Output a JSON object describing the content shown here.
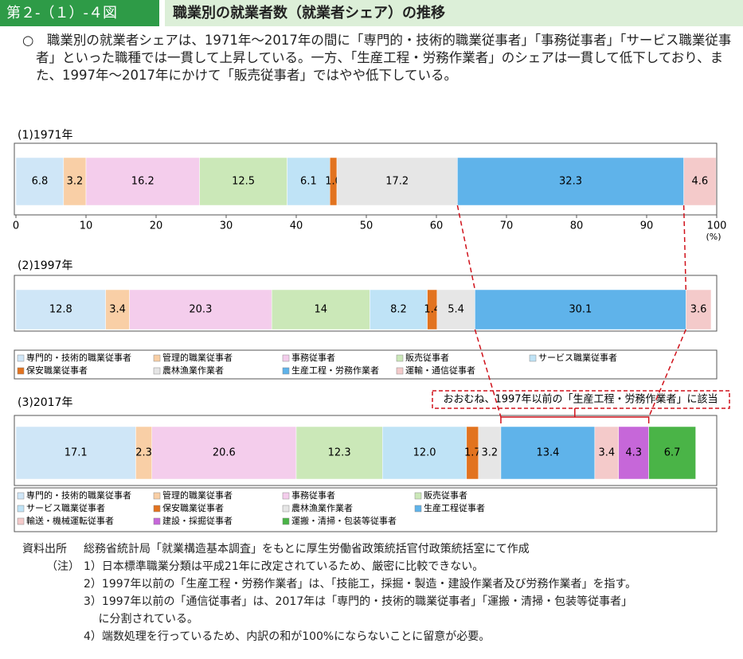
{
  "header": {
    "figure_number": "第２-（１）-４図",
    "title": "職業別の就業者数（就業者シェア）の推移"
  },
  "summary": "○　職業別の就業者シェアは、1971年～2017年の間に「専門的・技術的職業従事者」「事務従事者」「サービス職業従事者」といった職種では一貫して上昇している。一方、「生産工程・労務作業者」のシェアは一貫して低下しており、また、1997年～2017年にかけて「販売従事者」ではやや低下している。",
  "chart_data": [
    {
      "type": "bar",
      "orientation": "horizontal",
      "stacked": true,
      "title": "(1)1971年",
      "xlim": [
        0,
        100
      ],
      "xticks": [
        0,
        10,
        20,
        30,
        40,
        50,
        60,
        70,
        80,
        90,
        100
      ],
      "xlabel": "(%)",
      "series": [
        {
          "color": "#cfe6f7",
          "values": [
            6.8
          ]
        },
        {
          "color": "#f9cfa6",
          "values": [
            3.2
          ]
        },
        {
          "color": "#f4cdec",
          "values": [
            16.2
          ]
        },
        {
          "color": "#cbe8b8",
          "values": [
            12.5
          ]
        },
        {
          "color": "#bfe3f6",
          "values": [
            6.1
          ]
        },
        {
          "color": "#e2731f",
          "values": [
            1
          ],
          "value_labels": [
            "1.0"
          ]
        },
        {
          "color": "#e6e6e6",
          "values": [
            17.2
          ]
        },
        {
          "color": "#5fb3ea",
          "values": [
            32.3
          ]
        },
        {
          "color": "#f4caca",
          "values": [
            4.6
          ]
        }
      ]
    },
    {
      "type": "bar",
      "orientation": "horizontal",
      "stacked": true,
      "title": "(2)1997年",
      "xlim": [
        0,
        100
      ],
      "series": [
        {
          "name": "専門的・技術的職業従事者",
          "color": "#cfe6f7",
          "values": [
            12.8
          ]
        },
        {
          "name": "管理的職業従事者",
          "color": "#f9cfa6",
          "values": [
            3.4
          ]
        },
        {
          "name": "事務従事者",
          "color": "#f4cdec",
          "values": [
            20.3
          ]
        },
        {
          "name": "販売従事者",
          "color": "#cbe8b8",
          "values": [
            14
          ]
        },
        {
          "name": "サービス職業従事者",
          "color": "#bfe3f6",
          "values": [
            8.2
          ]
        },
        {
          "name": "保安職業従事者",
          "color": "#e2731f",
          "values": [
            1.4
          ]
        },
        {
          "name": "農林漁業作業者",
          "color": "#e6e6e6",
          "values": [
            5.4
          ]
        },
        {
          "name": "生産工程・労務作業者",
          "color": "#5fb3ea",
          "values": [
            30.1
          ]
        },
        {
          "name": "運輸・通信従事者",
          "color": "#f4caca",
          "values": [
            3.6
          ]
        }
      ]
    },
    {
      "type": "bar",
      "orientation": "horizontal",
      "stacked": true,
      "title": "(3)2017年",
      "xlim": [
        0,
        100
      ],
      "annotation": "おおむね、1997年以前の「生産工程・労務作業者」に該当",
      "series": [
        {
          "name": "専門的・技術的職業従事者",
          "color": "#cfe6f7",
          "values": [
            17.1
          ]
        },
        {
          "name": "管理的職業従事者",
          "color": "#f9cfa6",
          "values": [
            2.3
          ]
        },
        {
          "name": "事務従事者",
          "color": "#f4cdec",
          "values": [
            20.6
          ]
        },
        {
          "name": "販売従事者",
          "color": "#cbe8b8",
          "values": [
            12.3
          ]
        },
        {
          "name": "サービス職業従事者",
          "color": "#bfe3f6",
          "values": [
            12
          ],
          "value_labels": [
            "12.0"
          ]
        },
        {
          "name": "保安職業従事者",
          "color": "#e2731f",
          "values": [
            1.7
          ]
        },
        {
          "name": "農林漁業作業者",
          "color": "#e6e6e6",
          "values": [
            3.2
          ]
        },
        {
          "name": "生産工程従事者",
          "color": "#5fb3ea",
          "values": [
            13.4
          ]
        },
        {
          "name": "輸送・機械運転従事者",
          "color": "#f4caca",
          "values": [
            3.4
          ]
        },
        {
          "name": "建設・採掘従事者",
          "color": "#c667d9",
          "values": [
            4.3
          ]
        },
        {
          "name": "運搬・清掃・包装等従事者",
          "color": "#4ab447",
          "values": [
            6.7
          ]
        }
      ]
    }
  ],
  "source": {
    "label": "資料出所",
    "text": "総務省統計局「就業構造基本調査」をもとに厚生労働省政策統括官付政策統括室にて作成"
  },
  "notes": {
    "label": "（注）",
    "items": [
      "1）日本標準職業分類は平成21年に改定されているため、厳密に比較できない。",
      "2）1997年以前の「生産工程・労務作業者」は、「技能工，採掘・製造・建設作業者及び労務作業者」を指す。",
      "3）1997年以前の「通信従事者」は、2017年は「専門的・技術的職業従事者」「運搬・清掃・包装等従事者」",
      "　 に分割されている。",
      "4）端数処理を行っているため、内訳の和が100%にならないことに留意が必要。"
    ]
  }
}
